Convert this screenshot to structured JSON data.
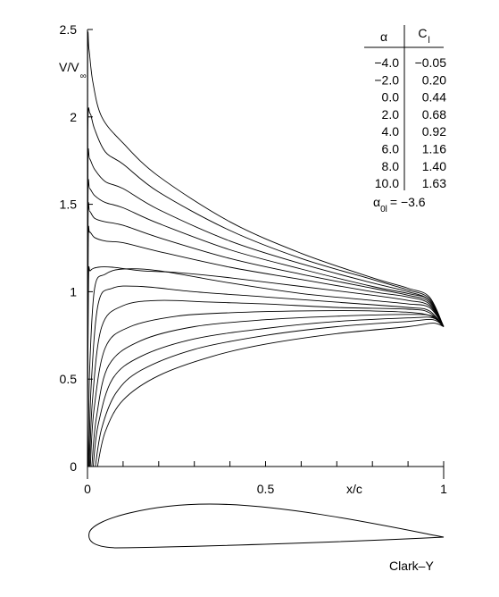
{
  "chart_data": {
    "type": "line",
    "title": "",
    "xlabel": "x/c",
    "ylabel": "V/V",
    "ylabel_sub": "∞",
    "xlim": [
      0,
      1
    ],
    "ylim": [
      0,
      2.5
    ],
    "x_ticks": [
      {
        "value": 0,
        "label": "0"
      },
      {
        "value": 0.5,
        "label": "0.5"
      },
      {
        "value": 1,
        "label": "1"
      }
    ],
    "y_ticks": [
      {
        "value": 0,
        "label": "0"
      },
      {
        "value": 0.5,
        "label": "0.5"
      },
      {
        "value": 1,
        "label": "1"
      },
      {
        "value": 1.5,
        "label": "1.5"
      },
      {
        "value": 2,
        "label": "2"
      },
      {
        "value": 2.5,
        "label": "2.5"
      }
    ],
    "grid": false,
    "airfoil_label": "Clark–Y",
    "table": {
      "col1_header": "α",
      "col2_header": "C",
      "col2_header_sub": "l",
      "rows": [
        {
          "alpha": "−4.0",
          "cl": "−0.05"
        },
        {
          "alpha": "−2.0",
          "cl": "0.20"
        },
        {
          "alpha": "0.0",
          "cl": "0.44"
        },
        {
          "alpha": "2.0",
          "cl": "0.68"
        },
        {
          "alpha": "4.0",
          "cl": "0.92"
        },
        {
          "alpha": "6.0",
          "cl": "1.16"
        },
        {
          "alpha": "8.0",
          "cl": "1.40"
        },
        {
          "alpha": "10.0",
          "cl": "1.63"
        }
      ],
      "zero_lift_label": "α",
      "zero_lift_sub": "0l",
      "zero_lift_value": "= −3.6"
    },
    "series": [
      {
        "surface": "upper",
        "points": [
          [
            0,
            0.2
          ],
          [
            0.003,
            1.06
          ],
          [
            0.008,
            1.12
          ],
          [
            0.03,
            1.14
          ],
          [
            0.07,
            1.14
          ],
          [
            0.15,
            1.12
          ],
          [
            0.25,
            1.11
          ],
          [
            0.4,
            1.08
          ],
          [
            0.6,
            1.03
          ],
          [
            0.8,
            0.98
          ],
          [
            0.9,
            0.95
          ],
          [
            0.96,
            0.92
          ],
          [
            1.0,
            0.8
          ]
        ]
      },
      {
        "surface": "upper",
        "points": [
          [
            0,
            0.3
          ],
          [
            0.0022,
            1.28
          ],
          [
            0.006,
            1.34
          ],
          [
            0.02,
            1.31
          ],
          [
            0.05,
            1.29
          ],
          [
            0.1,
            1.28
          ],
          [
            0.2,
            1.23
          ],
          [
            0.4,
            1.14
          ],
          [
            0.6,
            1.07
          ],
          [
            0.8,
            1.0
          ],
          [
            0.9,
            0.97
          ],
          [
            0.96,
            0.93
          ],
          [
            1.0,
            0.8
          ]
        ]
      },
      {
        "surface": "upper",
        "points": [
          [
            0,
            0.4
          ],
          [
            0.0018,
            1.42
          ],
          [
            0.006,
            1.46
          ],
          [
            0.02,
            1.42
          ],
          [
            0.05,
            1.4
          ],
          [
            0.1,
            1.38
          ],
          [
            0.2,
            1.31
          ],
          [
            0.4,
            1.19
          ],
          [
            0.6,
            1.1
          ],
          [
            0.8,
            1.02
          ],
          [
            0.9,
            0.98
          ],
          [
            0.96,
            0.94
          ],
          [
            1.0,
            0.8
          ]
        ]
      },
      {
        "surface": "upper",
        "points": [
          [
            0,
            0.5
          ],
          [
            0.0015,
            1.55
          ],
          [
            0.006,
            1.59
          ],
          [
            0.02,
            1.55
          ],
          [
            0.05,
            1.51
          ],
          [
            0.1,
            1.48
          ],
          [
            0.2,
            1.39
          ],
          [
            0.4,
            1.24
          ],
          [
            0.6,
            1.13
          ],
          [
            0.8,
            1.03
          ],
          [
            0.9,
            0.99
          ],
          [
            0.96,
            0.95
          ],
          [
            1.0,
            0.8
          ]
        ]
      },
      {
        "surface": "upper",
        "points": [
          [
            0,
            0.6
          ],
          [
            0.0012,
            1.72
          ],
          [
            0.006,
            1.76
          ],
          [
            0.02,
            1.7
          ],
          [
            0.05,
            1.63
          ],
          [
            0.1,
            1.59
          ],
          [
            0.2,
            1.47
          ],
          [
            0.4,
            1.29
          ],
          [
            0.6,
            1.16
          ],
          [
            0.8,
            1.05
          ],
          [
            0.9,
            1.0
          ],
          [
            0.96,
            0.95
          ],
          [
            1.0,
            0.8
          ]
        ]
      },
      {
        "surface": "upper",
        "points": [
          [
            0,
            0.7
          ],
          [
            0.001,
            1.92
          ],
          [
            0.007,
            2.02
          ],
          [
            0.02,
            1.93
          ],
          [
            0.05,
            1.8
          ],
          [
            0.1,
            1.73
          ],
          [
            0.2,
            1.57
          ],
          [
            0.4,
            1.35
          ],
          [
            0.6,
            1.19
          ],
          [
            0.8,
            1.07
          ],
          [
            0.9,
            1.01
          ],
          [
            0.96,
            0.96
          ],
          [
            1.0,
            0.8
          ]
        ]
      },
      {
        "surface": "upper",
        "points": [
          [
            0,
            0.8
          ],
          [
            0.0008,
            2.35
          ],
          [
            0.004,
            2.39
          ],
          [
            0.015,
            2.2
          ],
          [
            0.04,
            2.0
          ],
          [
            0.1,
            1.85
          ],
          [
            0.2,
            1.66
          ],
          [
            0.4,
            1.4
          ],
          [
            0.6,
            1.22
          ],
          [
            0.8,
            1.08
          ],
          [
            0.9,
            1.02
          ],
          [
            0.96,
            0.97
          ],
          [
            1.0,
            0.8
          ]
        ]
      },
      {
        "surface": "lower",
        "points": [
          [
            0.002,
            0.0
          ],
          [
            0.006,
            0.55
          ],
          [
            0.02,
            1.02
          ],
          [
            0.05,
            1.1
          ],
          [
            0.1,
            1.13
          ],
          [
            0.2,
            1.12
          ],
          [
            0.4,
            1.05
          ],
          [
            0.6,
            0.99
          ],
          [
            0.8,
            0.95
          ],
          [
            0.9,
            0.93
          ],
          [
            0.96,
            0.91
          ],
          [
            1.0,
            0.8
          ]
        ]
      },
      {
        "surface": "lower",
        "points": [
          [
            0.004,
            0.0
          ],
          [
            0.01,
            0.45
          ],
          [
            0.03,
            0.93
          ],
          [
            0.07,
            1.02
          ],
          [
            0.15,
            1.03
          ],
          [
            0.3,
            1.0
          ],
          [
            0.5,
            0.97
          ],
          [
            0.7,
            0.94
          ],
          [
            0.9,
            0.91
          ],
          [
            0.96,
            0.89
          ],
          [
            1.0,
            0.8
          ]
        ]
      },
      {
        "surface": "lower",
        "points": [
          [
            0.006,
            0.0
          ],
          [
            0.014,
            0.38
          ],
          [
            0.04,
            0.8
          ],
          [
            0.1,
            0.92
          ],
          [
            0.2,
            0.95
          ],
          [
            0.35,
            0.94
          ],
          [
            0.5,
            0.93
          ],
          [
            0.7,
            0.91
          ],
          [
            0.9,
            0.9
          ],
          [
            0.96,
            0.88
          ],
          [
            1.0,
            0.8
          ]
        ]
      },
      {
        "surface": "lower",
        "points": [
          [
            0.008,
            0.0
          ],
          [
            0.018,
            0.32
          ],
          [
            0.05,
            0.68
          ],
          [
            0.12,
            0.8
          ],
          [
            0.25,
            0.86
          ],
          [
            0.4,
            0.88
          ],
          [
            0.6,
            0.89
          ],
          [
            0.8,
            0.89
          ],
          [
            0.95,
            0.87
          ],
          [
            1.0,
            0.8
          ]
        ]
      },
      {
        "surface": "lower",
        "points": [
          [
            0.012,
            0.0
          ],
          [
            0.025,
            0.28
          ],
          [
            0.06,
            0.58
          ],
          [
            0.15,
            0.72
          ],
          [
            0.3,
            0.8
          ],
          [
            0.5,
            0.84
          ],
          [
            0.7,
            0.86
          ],
          [
            0.9,
            0.87
          ],
          [
            0.97,
            0.86
          ],
          [
            1.0,
            0.8
          ]
        ]
      },
      {
        "surface": "lower",
        "points": [
          [
            0.016,
            0.0
          ],
          [
            0.03,
            0.24
          ],
          [
            0.07,
            0.5
          ],
          [
            0.15,
            0.63
          ],
          [
            0.3,
            0.73
          ],
          [
            0.5,
            0.79
          ],
          [
            0.7,
            0.83
          ],
          [
            0.9,
            0.85
          ],
          [
            0.97,
            0.85
          ],
          [
            1.0,
            0.8
          ]
        ]
      },
      {
        "surface": "lower",
        "points": [
          [
            0.022,
            0.0
          ],
          [
            0.04,
            0.22
          ],
          [
            0.08,
            0.42
          ],
          [
            0.15,
            0.55
          ],
          [
            0.3,
            0.67
          ],
          [
            0.5,
            0.75
          ],
          [
            0.7,
            0.8
          ],
          [
            0.9,
            0.83
          ],
          [
            0.97,
            0.84
          ],
          [
            1.0,
            0.8
          ]
        ]
      },
      {
        "surface": "lower",
        "points": [
          [
            0.028,
            0.0
          ],
          [
            0.05,
            0.2
          ],
          [
            0.1,
            0.38
          ],
          [
            0.2,
            0.52
          ],
          [
            0.35,
            0.63
          ],
          [
            0.5,
            0.7
          ],
          [
            0.7,
            0.76
          ],
          [
            0.9,
            0.8
          ],
          [
            0.97,
            0.82
          ],
          [
            1.0,
            0.8
          ]
        ]
      }
    ]
  }
}
